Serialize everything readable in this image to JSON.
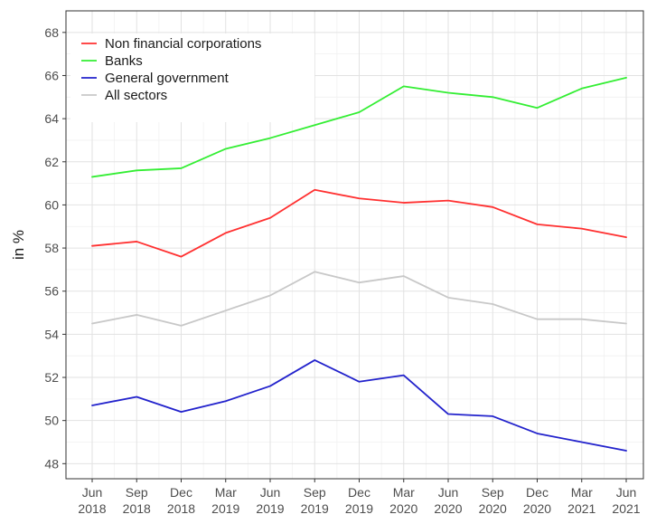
{
  "chart_data": {
    "type": "line",
    "title": "",
    "xlabel": "",
    "ylabel": "in %",
    "ylim": [
      47.3,
      69.0
    ],
    "yticks": [
      48,
      50,
      52,
      54,
      56,
      58,
      60,
      62,
      64,
      66,
      68
    ],
    "grid": true,
    "legend_position": "top-left",
    "categories": [
      [
        "Jun",
        "2018"
      ],
      [
        "Sep",
        "2018"
      ],
      [
        "Dec",
        "2018"
      ],
      [
        "Mar",
        "2019"
      ],
      [
        "Jun",
        "2019"
      ],
      [
        "Sep",
        "2019"
      ],
      [
        "Dec",
        "2019"
      ],
      [
        "Mar",
        "2020"
      ],
      [
        "Jun",
        "2020"
      ],
      [
        "Sep",
        "2020"
      ],
      [
        "Dec",
        "2020"
      ],
      [
        "Mar",
        "2021"
      ],
      [
        "Jun",
        "2021"
      ]
    ],
    "series": [
      {
        "name": "Non financial corporations",
        "color": "#ff3030",
        "values": [
          58.1,
          58.3,
          57.6,
          58.7,
          59.4,
          60.7,
          60.3,
          60.1,
          60.2,
          59.9,
          59.1,
          58.9,
          58.5
        ]
      },
      {
        "name": "Banks",
        "color": "#33ee33",
        "values": [
          61.3,
          61.6,
          61.7,
          62.6,
          63.1,
          63.7,
          64.3,
          65.5,
          65.2,
          65.0,
          64.5,
          65.4,
          65.9
        ]
      },
      {
        "name": "General government",
        "color": "#2222cc",
        "values": [
          50.7,
          51.1,
          50.4,
          50.9,
          51.6,
          52.8,
          51.8,
          52.1,
          50.3,
          50.2,
          49.4,
          49.0,
          48.6
        ]
      },
      {
        "name": "All sectors",
        "color": "#c8c8c8",
        "values": [
          54.5,
          54.9,
          54.4,
          55.1,
          55.8,
          56.9,
          56.4,
          56.7,
          55.7,
          55.4,
          54.7,
          54.7,
          54.5
        ]
      }
    ]
  }
}
